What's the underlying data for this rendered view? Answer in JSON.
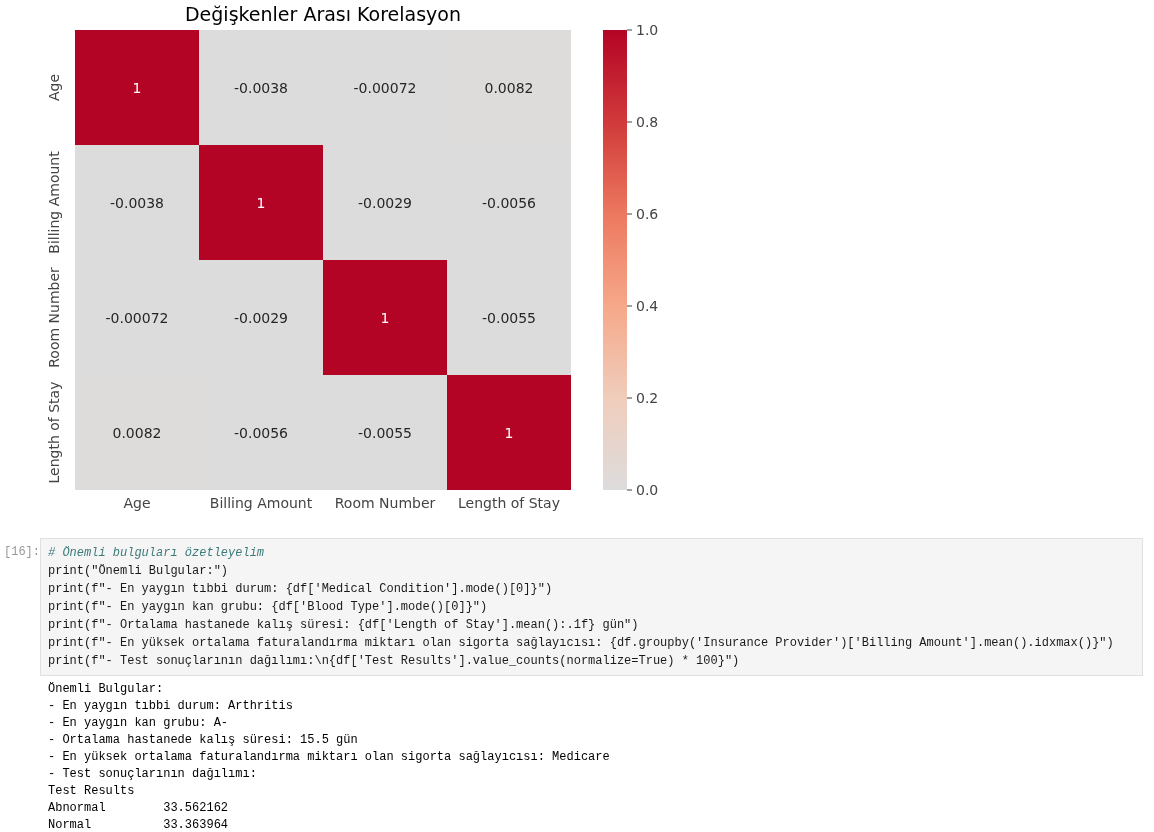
{
  "chart_data": {
    "type": "heatmap",
    "title": "Değişkenler Arası Korelasyon",
    "categories": [
      "Age",
      "Billing Amount",
      "Room Number",
      "Length of Stay"
    ],
    "y_categories": [
      "Age",
      "Billing Amount",
      "Room Number",
      "Length of Stay"
    ],
    "cells": [
      [
        1,
        -0.0038,
        -0.00072,
        0.0082
      ],
      [
        -0.0038,
        1,
        -0.0029,
        -0.0056
      ],
      [
        -0.00072,
        -0.0029,
        1,
        -0.0055
      ],
      [
        0.0082,
        -0.0056,
        -0.0055,
        1
      ]
    ],
    "data_labels": true,
    "clim": [
      0,
      1
    ],
    "cticks": [
      {
        "value": 0,
        "label": "0.0"
      },
      {
        "value": 0.2,
        "label": "0.2"
      },
      {
        "value": 0.4,
        "label": "0.4"
      },
      {
        "value": 0.6,
        "label": "0.6"
      },
      {
        "value": 0.8,
        "label": "0.8"
      },
      {
        "value": 1,
        "label": "1.0"
      }
    ],
    "annotations": [
      "[16]:",
      "# Önemli bulguları özetleyelim",
      "print(\"Önemli Bulgular:\")",
      "print(f\"- En yaygın tıbbi durum: {df['Medical Condition'].mode()[0]}\")",
      "print(f\"- En yaygın kan grubu: {df['Blood Type'].mode()[0]}\")",
      "print(f\"- Ortalama hastanede kalış süresi: {df['Length of Stay'].mean():.1f} gün\")",
      "print(f\"- En yüksek ortalama faturalandırma miktarı olan sigorta sağlayıcısı: {df.groupby('Insurance Provider')['Billing Amount'].mean().idxmax()}\")",
      "print(f\"- Test sonuçlarının dağılımı:\\n{df['Test Results'].value_counts(normalize=True) * 100}\")",
      "Önemli Bulgular:",
      "- En yaygın tıbbi durum: Arthritis",
      "- En yaygın kan grubu: A-",
      "- Ortalama hastanede kalış süresi: 15.5 gün",
      "- En yüksek ortalama faturalandırma miktarı olan sigorta sağlayıcısı: Medicare",
      "- Test sonuçlarının dağılımı:",
      "Test Results",
      "Abnormal        33.562162",
      "Normal          33.363964"
    ]
  }
}
